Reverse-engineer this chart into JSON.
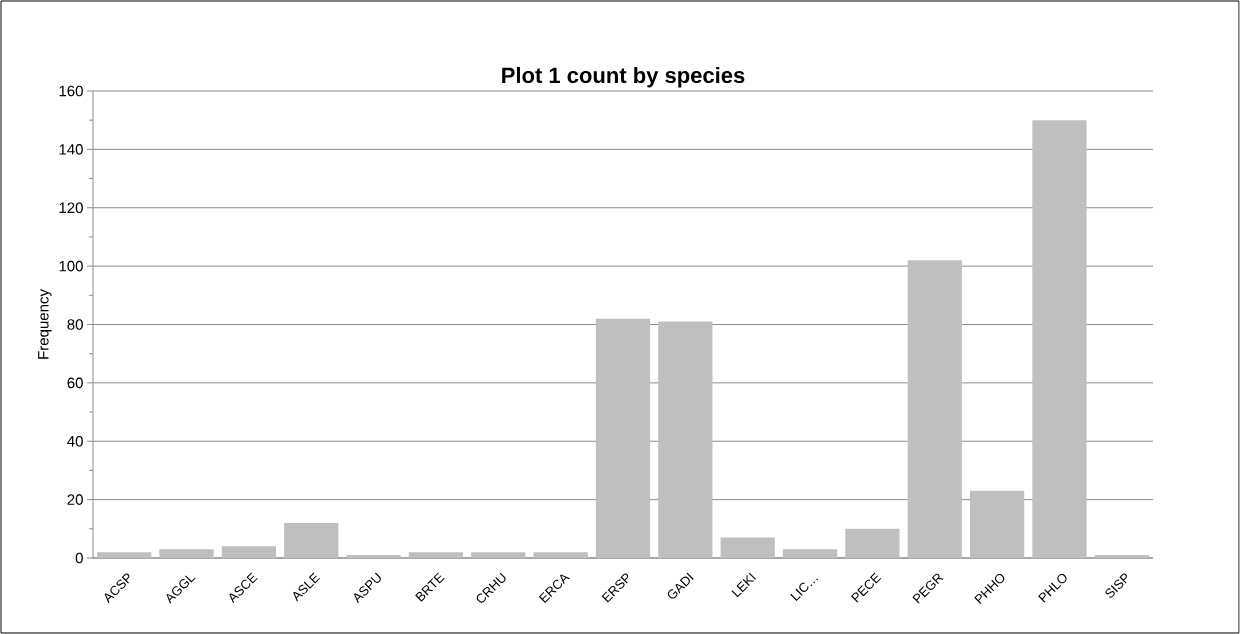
{
  "chart_data": {
    "type": "bar",
    "title": "Plot 1 count by species",
    "ylabel": "Frequency",
    "categories": [
      "ACSP",
      "AGGL",
      "ASCE",
      "ASLE",
      "ASPU",
      "BRTE",
      "CRHU",
      "ERCA",
      "ERSP",
      "GADI",
      "LEKI",
      "LIC…",
      "PECE",
      "PEGR",
      "PHHO",
      "PHLO",
      "SISP"
    ],
    "values": [
      2,
      3,
      4,
      12,
      1,
      2,
      2,
      2,
      82,
      81,
      7,
      3,
      10,
      102,
      23,
      150,
      1
    ],
    "color": "#bfbfbf",
    "ylim": [
      0,
      160
    ],
    "yticks": [
      0,
      20,
      40,
      60,
      80,
      100,
      120,
      140,
      160
    ],
    "grid": "y"
  }
}
